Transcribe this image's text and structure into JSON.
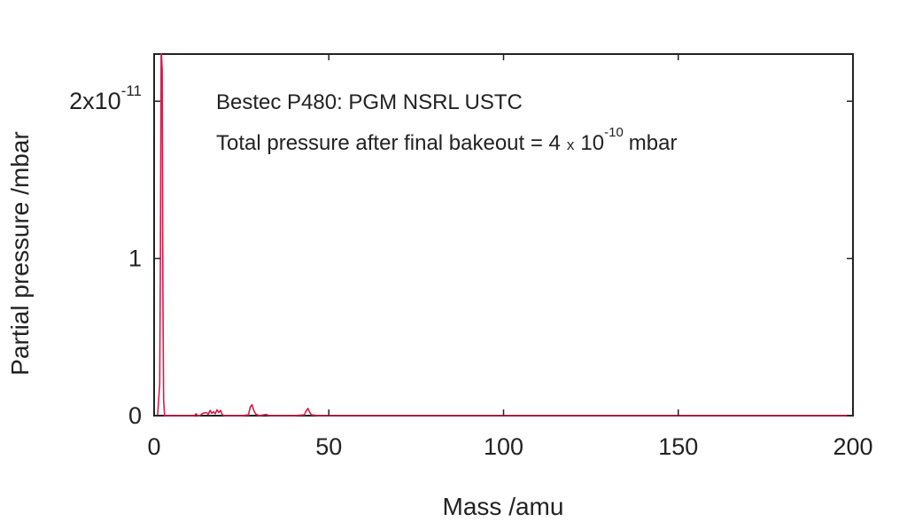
{
  "chart_data": {
    "type": "line",
    "title": "",
    "xlabel": "Mass /amu",
    "ylabel": "Partial pressure /mbar",
    "xlim": [
      0,
      200
    ],
    "ylim": [
      0,
      2.3e-11
    ],
    "grid": false,
    "x_ticks": [
      {
        "value": 0,
        "label": "0"
      },
      {
        "value": 50,
        "label": "50"
      },
      {
        "value": 100,
        "label": "100"
      },
      {
        "value": 150,
        "label": "150"
      },
      {
        "value": 200,
        "label": "200"
      }
    ],
    "y_ticks": [
      {
        "value": 0,
        "label": "0",
        "exp": ""
      },
      {
        "value": 1e-11,
        "label": "1",
        "exp": ""
      },
      {
        "value": 2e-11,
        "label": "2x10",
        "exp": "-11"
      }
    ],
    "annotations": {
      "line1": "Bestec P480: PGM NSRL USTC",
      "line2_pre": "Total pressure after final bakeout = 4",
      "line2_times": "x",
      "line2_base": "10",
      "line2_exp": "-10",
      "line2_post": "mbar"
    },
    "series": [
      {
        "color": "#d81b4a",
        "x": [
          0,
          1,
          1.6,
          1.8,
          2.0,
          2.1,
          2.3,
          2.5,
          2.7,
          3,
          4,
          6,
          8,
          10,
          11.5,
          12,
          12.5,
          13,
          14,
          15,
          15.5,
          16,
          16.5,
          17,
          17.5,
          18,
          18.5,
          19,
          19.5,
          20,
          22,
          25,
          27,
          27.5,
          28,
          28.5,
          29,
          30,
          32,
          33,
          35,
          40,
          43,
          43.5,
          44,
          44.5,
          45,
          47,
          55,
          60,
          80,
          100,
          120,
          150,
          180,
          200
        ],
        "y": [
          0,
          0,
          2e-12,
          1e-11,
          2.3e-11,
          2.3e-11,
          2.2e-11,
          8e-12,
          1e-12,
          0,
          0,
          0,
          0,
          0,
          0,
          1.2e-13,
          0,
          0,
          1.5e-13,
          2e-13,
          8e-14,
          3.3e-13,
          1.5e-13,
          2.5e-13,
          1.2e-13,
          3.8e-13,
          2e-13,
          3.3e-13,
          8e-14,
          0,
          0,
          0,
          5e-14,
          5.5e-13,
          7e-13,
          3.5e-13,
          1.2e-13,
          0,
          8e-14,
          0,
          0,
          0,
          5e-14,
          3e-13,
          4.6e-13,
          2.2e-13,
          5e-14,
          0,
          0,
          0,
          0,
          0,
          0,
          0,
          0,
          0
        ]
      }
    ]
  }
}
